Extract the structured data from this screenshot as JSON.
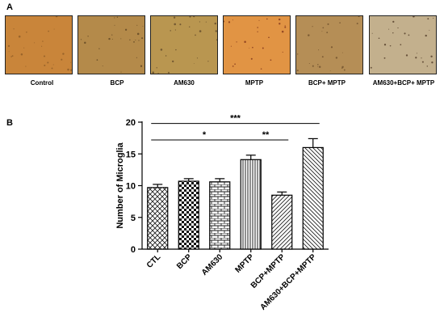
{
  "panel_a": {
    "letter": "A",
    "images": [
      {
        "label": "Control",
        "bg": "#c9853a",
        "speck": "#8a5a25"
      },
      {
        "label": "BCP",
        "bg": "#b48a4a",
        "speck": "#5a4020"
      },
      {
        "label": "AM630",
        "bg": "#b99650",
        "speck": "#5d4628"
      },
      {
        "label": "MPTP",
        "bg": "#e19444",
        "speck": "#7a2f18"
      },
      {
        "label": "BCP+ MPTP",
        "bg": "#b58e56",
        "speck": "#6a4b2a"
      },
      {
        "label": "AM630+BCP+ MPTP",
        "bg": "#c3b08d",
        "speck": "#4a3320"
      }
    ]
  },
  "panel_b": {
    "letter": "B"
  },
  "chart_data": {
    "type": "bar",
    "categories": [
      "CTL",
      "BCP",
      "AM630",
      "MPTP",
      "BCP+MPTP",
      "AM630+BCP+MPTP"
    ],
    "values": [
      9.7,
      10.7,
      10.6,
      14.1,
      8.5,
      16.0
    ],
    "errors": [
      0.5,
      0.4,
      0.5,
      0.7,
      0.5,
      1.4
    ],
    "patterns": [
      "diagonal-grid",
      "checker",
      "brick",
      "vertical",
      "diagonal-left",
      "diagonal-right"
    ],
    "ylabel": "Number of Microglia",
    "xlabel": "",
    "title": "",
    "ylim": [
      0,
      20
    ],
    "yticks": [
      "0",
      "5",
      "10",
      "15",
      "20"
    ],
    "yticks_values": [
      0,
      5,
      10,
      15,
      20
    ],
    "grid": false,
    "significance": [
      {
        "from": 0,
        "to": 5,
        "label": "***"
      },
      {
        "from": 0,
        "to": 3,
        "label": "*"
      },
      {
        "from": 3,
        "to": 4,
        "label": "**"
      }
    ],
    "significance_levels": [
      19.8,
      17.2,
      17.2
    ]
  }
}
